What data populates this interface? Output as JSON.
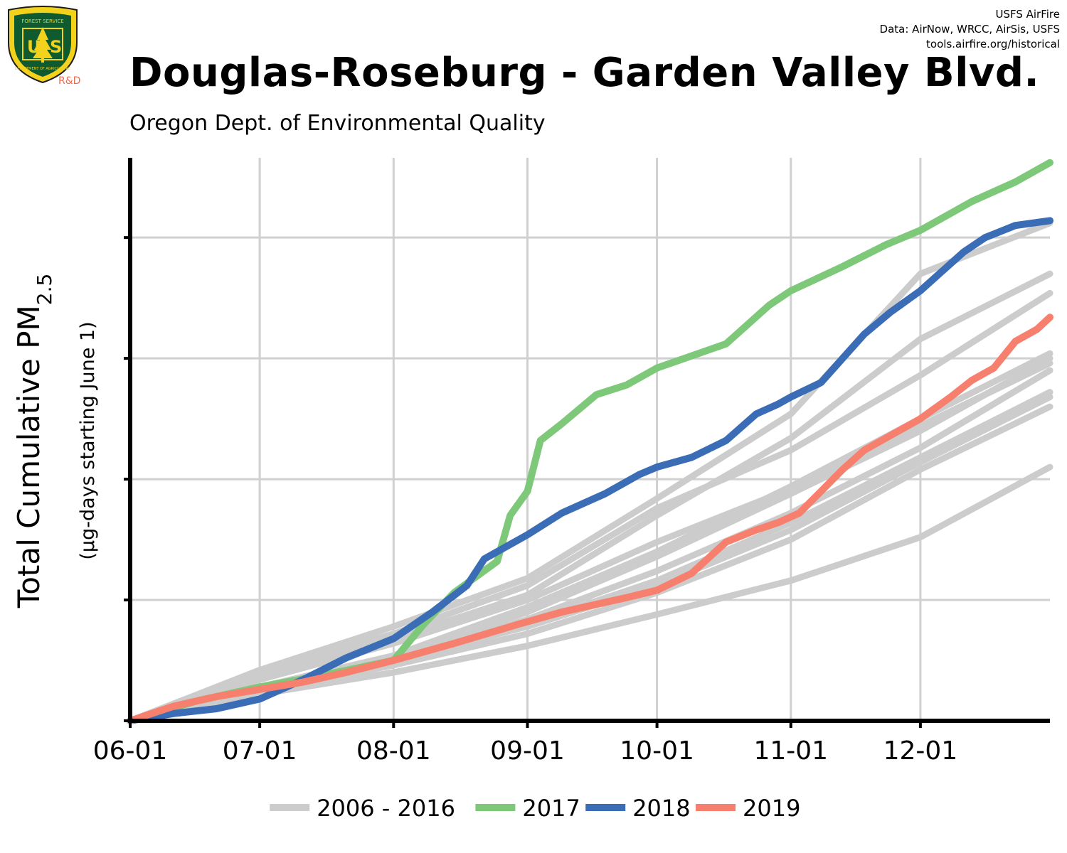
{
  "header": {
    "title": "Douglas-Roseburg - Garden Valley Blvd.",
    "subtitle": "Oregon Dept. of Environmental Quality",
    "credits": [
      "USFS AirFire",
      "Data: AirNow, WRCC, AirSis, USFS",
      "tools.airfire.org/historical"
    ],
    "logo_text": "U S",
    "logo_top_text": "FOREST SERVICE",
    "logo_bottom_text": "DEPARTMENT OF AGRICULTURE",
    "logo_rd": "R&D"
  },
  "chart_data": {
    "type": "line",
    "title": "Douglas-Roseburg - Garden Valley Blvd.",
    "subtitle": "Oregon Dept. of Environmental Quality",
    "ylabel_main": "Total Cumulative PM",
    "ylabel_sub": "2.5",
    "ylabel_units": "(µg-days starting June 1)",
    "x_ticks": [
      "06-01",
      "07-01",
      "08-01",
      "09-01",
      "10-01",
      "11-01",
      "12-01"
    ],
    "x_tick_days": [
      0,
      30,
      61,
      92,
      122,
      153,
      183
    ],
    "xlim": [
      0,
      213
    ],
    "ylim": [
      0,
      2.33
    ],
    "y_ticks": [
      0,
      0.5,
      1.0,
      1.5,
      2.0
    ],
    "y_tick_labels_shown": false,
    "grid": true,
    "legend": {
      "placement": "bottom",
      "entries": [
        "2006 - 2016",
        "2017",
        "2018",
        "2019"
      ]
    },
    "colors": {
      "historical": "#cccccc",
      "2017": "#7ec87a",
      "2018": "#3a6db5",
      "2019": "#f77f6e"
    },
    "historical_label": "2006 - 2016",
    "historical_series": [
      {
        "x": [
          0,
          30,
          61,
          92,
          122,
          153,
          183,
          213
        ],
        "y": [
          0,
          0.12,
          0.23,
          0.36,
          0.53,
          0.75,
          1.04,
          1.3
        ]
      },
      {
        "x": [
          0,
          30,
          61,
          92,
          122,
          153,
          183,
          213
        ],
        "y": [
          0,
          0.13,
          0.25,
          0.39,
          0.56,
          0.79,
          1.07,
          1.34
        ]
      },
      {
        "x": [
          0,
          30,
          61,
          92,
          122,
          153,
          183,
          213
        ],
        "y": [
          0,
          0.12,
          0.24,
          0.4,
          0.58,
          0.82,
          1.09,
          1.36
        ]
      },
      {
        "x": [
          0,
          30,
          61,
          92,
          122,
          153,
          183,
          213
        ],
        "y": [
          0,
          0.13,
          0.26,
          0.45,
          0.68,
          0.94,
          1.2,
          1.5
        ]
      },
      {
        "x": [
          0,
          30,
          61,
          92,
          122,
          153,
          183,
          213
        ],
        "y": [
          0,
          0.14,
          0.27,
          0.47,
          0.7,
          0.97,
          1.25,
          1.52
        ]
      },
      {
        "x": [
          0,
          30,
          61,
          92,
          122,
          153,
          183,
          213
        ],
        "y": [
          0,
          0.11,
          0.2,
          0.31,
          0.44,
          0.58,
          0.76,
          1.05
        ]
      },
      {
        "x": [
          0,
          30,
          61,
          92,
          122,
          153,
          183,
          213
        ],
        "y": [
          0,
          0.13,
          0.25,
          0.42,
          0.62,
          0.86,
          1.13,
          1.45
        ]
      },
      {
        "x": [
          0,
          30,
          61,
          92,
          122,
          153,
          183,
          213
        ],
        "y": [
          0,
          0.17,
          0.32,
          0.5,
          0.74,
          0.96,
          1.22,
          1.48
        ]
      },
      {
        "x": [
          0,
          30,
          61,
          92,
          122,
          153,
          183,
          213
        ],
        "y": [
          0,
          0.2,
          0.36,
          0.56,
          0.88,
          1.12,
          1.43,
          1.77
        ]
      },
      {
        "x": [
          0,
          30,
          61,
          92,
          122,
          153,
          183,
          213
        ],
        "y": [
          0,
          0.19,
          0.34,
          0.52,
          0.85,
          1.17,
          1.58,
          1.85
        ]
      },
      {
        "x": [
          0,
          30,
          61,
          92,
          122,
          153,
          183,
          213
        ],
        "y": [
          0,
          0.21,
          0.39,
          0.59,
          0.92,
          1.27,
          1.85,
          2.06
        ]
      }
    ],
    "series": [
      {
        "name": "2017",
        "x": [
          0,
          15,
          30,
          45,
          61,
          68,
          75,
          85,
          88,
          92,
          95,
          100,
          108,
          115,
          122,
          130,
          138,
          148,
          153,
          165,
          175,
          183,
          195,
          205,
          213
        ],
        "y": [
          0,
          0.08,
          0.14,
          0.19,
          0.25,
          0.4,
          0.53,
          0.66,
          0.85,
          0.95,
          1.16,
          1.23,
          1.35,
          1.39,
          1.46,
          1.51,
          1.56,
          1.72,
          1.78,
          1.88,
          1.97,
          2.03,
          2.15,
          2.23,
          2.31
        ]
      },
      {
        "name": "2018",
        "x": [
          0,
          10,
          20,
          30,
          40,
          50,
          61,
          70,
          78,
          82,
          92,
          100,
          110,
          118,
          122,
          130,
          138,
          145,
          150,
          153,
          160,
          165,
          170,
          176,
          183,
          188,
          193,
          198,
          205,
          213
        ],
        "y": [
          0,
          0.03,
          0.05,
          0.09,
          0.17,
          0.26,
          0.34,
          0.45,
          0.56,
          0.67,
          0.77,
          0.86,
          0.94,
          1.02,
          1.05,
          1.09,
          1.16,
          1.27,
          1.31,
          1.34,
          1.4,
          1.5,
          1.6,
          1.69,
          1.78,
          1.86,
          1.94,
          2.0,
          2.05,
          2.07
        ]
      },
      {
        "name": "2019",
        "x": [
          0,
          10,
          20,
          30,
          40,
          50,
          61,
          75,
          90,
          100,
          115,
          122,
          130,
          138,
          145,
          150,
          155,
          160,
          165,
          170,
          175,
          183,
          190,
          195,
          200,
          205,
          210,
          213
        ],
        "y": [
          0,
          0.06,
          0.1,
          0.13,
          0.16,
          0.2,
          0.25,
          0.32,
          0.4,
          0.45,
          0.51,
          0.54,
          0.61,
          0.74,
          0.79,
          0.82,
          0.86,
          0.95,
          1.04,
          1.12,
          1.17,
          1.25,
          1.34,
          1.41,
          1.46,
          1.57,
          1.62,
          1.67
        ]
      }
    ]
  }
}
